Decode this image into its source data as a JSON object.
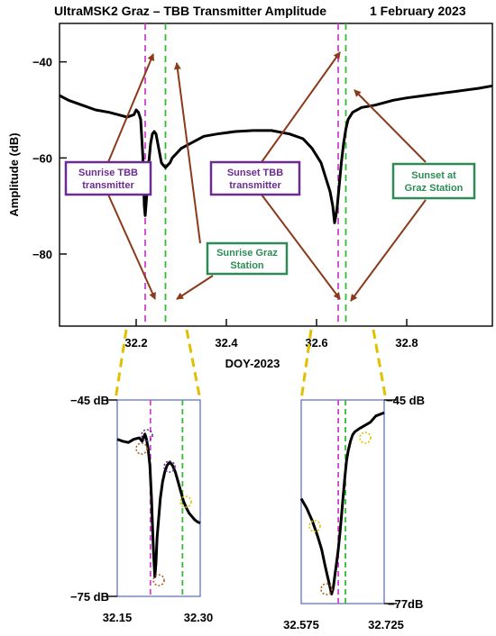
{
  "chart_data": [
    {
      "type": "line",
      "title": "UltraMSK2 Graz – TBB Transmitter Amplitude",
      "date": "1 February 2023",
      "xlabel": "DOY-2023",
      "ylabel": "Amplitude (dB)",
      "xlim": [
        32.03,
        32.99
      ],
      "ylim": [
        -95,
        -32
      ],
      "xticks": [
        32.2,
        32.4,
        32.6,
        32.8
      ],
      "xtick_labels": [
        "32.2",
        "32.4",
        "32.6",
        "32.8"
      ],
      "yticks": [
        -40,
        -60,
        -80
      ],
      "ytick_labels": [
        "−40",
        "−60",
        "−80"
      ],
      "series": [
        {
          "color": "#000000",
          "x": [
            32.03,
            32.05,
            32.08,
            32.11,
            32.14,
            32.16,
            32.18,
            32.195,
            32.2,
            32.205,
            32.21,
            32.215,
            32.218,
            32.22,
            32.225,
            32.228,
            32.232,
            32.236,
            32.24,
            32.244,
            32.248,
            32.252,
            32.256,
            32.26,
            32.265,
            32.27,
            32.275,
            32.28,
            32.29,
            32.3,
            32.32,
            32.35,
            32.38,
            32.42,
            32.46,
            32.5,
            32.54,
            32.57,
            32.59,
            32.61,
            32.62,
            32.63,
            32.636,
            32.64,
            32.643,
            32.646,
            32.65,
            32.655,
            32.66,
            32.665,
            32.67,
            32.68,
            32.7,
            32.73,
            32.77,
            32.8,
            32.84,
            32.88,
            32.92,
            32.96,
            32.99
          ],
          "y": [
            -47,
            -48,
            -49,
            -50,
            -50.5,
            -51,
            -51.5,
            -51,
            -50,
            -50.5,
            -52,
            -60,
            -70,
            -72,
            -66,
            -61,
            -57,
            -55,
            -54.5,
            -55,
            -57,
            -59,
            -61,
            -61.5,
            -62,
            -61.5,
            -61,
            -60,
            -59,
            -58,
            -57,
            -55.5,
            -55,
            -54.5,
            -54.3,
            -54.3,
            -55,
            -56,
            -58,
            -61,
            -64,
            -67,
            -70,
            -73.5,
            -72,
            -70,
            -66,
            -61,
            -57,
            -54,
            -52,
            -50.5,
            -49.5,
            -49,
            -48,
            -47.5,
            -47,
            -46.5,
            -46,
            -45.5,
            -45
          ]
        }
      ],
      "vlines": [
        {
          "x": 32.22,
          "color": "#cc44cc",
          "style": "dashed"
        },
        {
          "x": 32.265,
          "color": "#33bb33",
          "style": "dashed"
        },
        {
          "x": 32.648,
          "color": "#cc44cc",
          "style": "dashed"
        },
        {
          "x": 32.665,
          "color": "#33bb33",
          "style": "dashed"
        }
      ],
      "grid": false,
      "annotations": [
        {
          "text": [
            "Sunrise TBB",
            "transmitter"
          ],
          "color": "#6a2c91"
        },
        {
          "text": [
            "Sunrise Graz",
            "Station"
          ],
          "color": "#2e8b57"
        },
        {
          "text": [
            "Sunset TBB",
            "transmitter"
          ],
          "color": "#6a2c91"
        },
        {
          "text": [
            "Sunset at",
            "Graz Station"
          ],
          "color": "#2e8b57"
        }
      ],
      "arrow_color": "#8b3a1a"
    },
    {
      "type": "line",
      "xlim": [
        32.15,
        32.3
      ],
      "ylim": [
        -75,
        -45
      ],
      "top_label": "−45 dB",
      "bottom_label": "−75 dB",
      "xtick_labels": [
        "32.15",
        "32.30"
      ],
      "series": [
        {
          "color": "#000000",
          "x": [
            32.15,
            32.16,
            32.17,
            32.18,
            32.19,
            32.195,
            32.2,
            32.203,
            32.206,
            32.209,
            32.212,
            32.214,
            32.216,
            32.218,
            32.22,
            32.222,
            32.225,
            32.228,
            32.232,
            32.236,
            32.24,
            32.245,
            32.25,
            32.255,
            32.26,
            32.265,
            32.27,
            32.275,
            32.28,
            32.285,
            32.29,
            32.295,
            32.3
          ],
          "y": [
            -51,
            -51.3,
            -51.5,
            -51,
            -50.8,
            -51.3,
            -50.2,
            -51,
            -52.5,
            -55,
            -60,
            -65,
            -69,
            -72,
            -70,
            -66,
            -63,
            -60,
            -57.5,
            -56,
            -55,
            -54.5,
            -55,
            -56,
            -57.5,
            -59,
            -60.5,
            -61.5,
            -62.3,
            -62.8,
            -63.3,
            -63.6,
            -63.8
          ]
        }
      ],
      "vlines": [
        {
          "x": 32.21,
          "color": "#cc44cc"
        },
        {
          "x": 32.268,
          "color": "#33bb33"
        }
      ]
    },
    {
      "type": "line",
      "xlim": [
        32.575,
        32.725
      ],
      "ylim": [
        -77,
        -45
      ],
      "top_label": "−45 dB",
      "bottom_label": "−77dB",
      "xtick_labels": [
        "32.575",
        "32.725"
      ],
      "series": [
        {
          "color": "#000000",
          "x": [
            32.575,
            32.585,
            32.595,
            32.605,
            32.612,
            32.618,
            32.622,
            32.626,
            32.63,
            32.633,
            32.636,
            32.639,
            32.642,
            32.645,
            32.648,
            32.651,
            32.654,
            32.657,
            32.66,
            32.664,
            32.668,
            32.672,
            32.68,
            32.69,
            32.7,
            32.71,
            32.725
          ],
          "y": [
            -60.5,
            -62,
            -64,
            -66.5,
            -68.5,
            -71,
            -72.5,
            -74,
            -75.5,
            -74.5,
            -72.5,
            -70.5,
            -68.5,
            -66,
            -63,
            -60,
            -57,
            -54.5,
            -53,
            -51.5,
            -50.5,
            -50,
            -49.5,
            -49,
            -48.5,
            -47.5,
            -47
          ]
        }
      ],
      "vlines": [
        {
          "x": 32.642,
          "color": "#cc44cc"
        },
        {
          "x": 32.655,
          "color": "#33bb33"
        }
      ]
    }
  ]
}
